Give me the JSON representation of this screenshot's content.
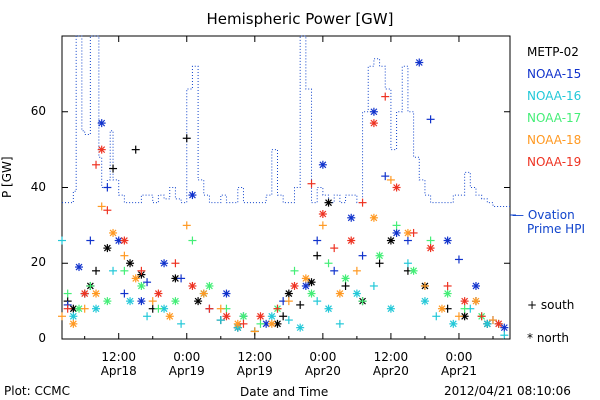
{
  "title": "Hemispheric Power [GW]",
  "ylabel": "P [GW]",
  "xlabel": "Date and Time",
  "plot_credit": "Plot: CCMC",
  "timestamp": "2012/04/21 08:10:06",
  "ovation_label_line1": "— Ovation",
  "ovation_label_line2": "Prime HPI",
  "legend": [
    {
      "name": "METP-02",
      "color": "#000000"
    },
    {
      "name": "NOAA-15",
      "color": "#1133cc"
    },
    {
      "name": "NOAA-16",
      "color": "#22c8d8"
    },
    {
      "name": "NOAA-17",
      "color": "#44ee77"
    },
    {
      "name": "NOAA-18",
      "color": "#ff9922"
    },
    {
      "name": "NOAA-19",
      "color": "#ee3322"
    }
  ],
  "marker_legend": [
    {
      "symbol": "+",
      "label": "south"
    },
    {
      "symbol": "*",
      "label": "north"
    }
  ],
  "chart_data": {
    "type": "scatter",
    "title": "Hemispheric Power [GW]",
    "xlabel": "Date and Time",
    "ylabel": "P [GW]",
    "x_unit": "hours since 2012-04-18 00:00 UTC",
    "xlim": [
      2,
      81
    ],
    "ylim": [
      0,
      80
    ],
    "yticks": [
      0,
      20,
      40,
      60
    ],
    "xticks": [
      {
        "x": 12,
        "line1": "12:00",
        "line2": "Apr18"
      },
      {
        "x": 24,
        "line1": "0:00",
        "line2": "Apr19"
      },
      {
        "x": 36,
        "line1": "12:00",
        "line2": "Apr19"
      },
      {
        "x": 48,
        "line1": "0:00",
        "line2": "Apr20"
      },
      {
        "x": 60,
        "line1": "12:00",
        "line2": "Apr20"
      },
      {
        "x": 72,
        "line1": "0:00",
        "line2": "Apr21"
      }
    ],
    "ovation_hpi": {
      "name": "Ovation Prime HPI",
      "color": "#1144cc",
      "x": [
        2,
        4,
        4.5,
        5,
        5.5,
        6,
        7,
        8,
        8.5,
        9,
        10,
        10.5,
        11,
        12,
        13,
        14,
        16,
        18,
        19,
        20,
        21,
        22,
        23,
        24,
        25,
        26,
        27,
        28,
        29,
        30,
        31,
        32,
        33,
        34,
        35,
        36,
        37,
        38,
        39,
        40,
        41,
        42,
        43,
        44,
        45,
        46,
        47,
        48,
        49,
        50,
        51,
        52,
        53,
        54,
        55,
        56,
        57,
        58,
        59,
        60,
        61,
        62,
        63,
        64,
        65,
        66,
        67,
        68,
        69,
        70,
        71,
        72,
        73,
        74,
        75,
        76,
        77,
        78,
        79,
        80,
        81
      ],
      "y": [
        36,
        39,
        80,
        80,
        55,
        54,
        80,
        80,
        48,
        40,
        42,
        55,
        42,
        38,
        36,
        36,
        38,
        36,
        38,
        37,
        40,
        37,
        36,
        66,
        72,
        42,
        38,
        36,
        36,
        38,
        36,
        36,
        40,
        36,
        36,
        36,
        36,
        38,
        50,
        38,
        36,
        36,
        40,
        80,
        66,
        36,
        40,
        38,
        36,
        38,
        36,
        38,
        38,
        36,
        60,
        72,
        74,
        72,
        66,
        50,
        60,
        72,
        60,
        48,
        42,
        38,
        36,
        36,
        36,
        36,
        38,
        38,
        44,
        40,
        38,
        37,
        36,
        35,
        35,
        35,
        35
      ]
    },
    "series": [
      {
        "name": "METP-02",
        "color": "#000000",
        "x": [
          3,
          4,
          6,
          7,
          8,
          10,
          11,
          14,
          15,
          16,
          18,
          22,
          24,
          26,
          30,
          33,
          36,
          40,
          41,
          42,
          44,
          46,
          47,
          49,
          52,
          55,
          58,
          60,
          63,
          66,
          70,
          73,
          75,
          77
        ],
        "y": [
          10,
          8,
          12,
          14,
          18,
          24,
          45,
          20,
          50,
          17,
          8,
          16,
          53,
          10,
          5,
          3,
          2,
          4,
          6,
          12,
          9,
          15,
          22,
          36,
          14,
          10,
          20,
          26,
          18,
          14,
          8,
          6,
          10,
          4
        ]
      },
      {
        "name": "NOAA-15",
        "color": "#1133cc",
        "x": [
          3,
          5,
          7,
          9,
          10,
          12,
          13,
          16,
          17,
          20,
          23,
          25,
          28,
          31,
          34,
          38,
          41,
          45,
          47,
          48,
          50,
          53,
          55,
          57,
          59,
          61,
          63,
          65,
          67,
          70,
          72,
          75,
          78,
          80
        ],
        "y": [
          9,
          19,
          26,
          57,
          40,
          26,
          12,
          10,
          15,
          20,
          16,
          38,
          8,
          12,
          6,
          4,
          10,
          14,
          26,
          46,
          18,
          32,
          22,
          60,
          43,
          28,
          26,
          73,
          58,
          26,
          21,
          14,
          5,
          3
        ]
      },
      {
        "name": "NOAA-16",
        "color": "#22c8d8",
        "x": [
          2,
          4,
          6,
          8,
          11,
          14,
          17,
          20,
          23,
          27,
          30,
          33,
          36,
          39,
          42,
          44,
          47,
          49,
          51,
          54,
          57,
          60,
          63,
          66,
          68,
          71,
          74,
          77,
          80
        ],
        "y": [
          26,
          6,
          12,
          8,
          18,
          10,
          6,
          8,
          4,
          12,
          5,
          3,
          2,
          6,
          5,
          3,
          10,
          8,
          4,
          12,
          14,
          8,
          20,
          10,
          6,
          4,
          8,
          4,
          1
        ]
      },
      {
        "name": "NOAA-17",
        "color": "#44ee77",
        "x": [
          3,
          5,
          7,
          10,
          13,
          16,
          19,
          22,
          25,
          28,
          31,
          34,
          37,
          40,
          43,
          46,
          49,
          52,
          55,
          58,
          61,
          64,
          67,
          70,
          73,
          76,
          79
        ],
        "y": [
          12,
          8,
          14,
          10,
          18,
          14,
          8,
          10,
          26,
          14,
          8,
          6,
          4,
          8,
          18,
          12,
          20,
          16,
          10,
          22,
          30,
          18,
          26,
          12,
          8,
          6,
          4
        ]
      },
      {
        "name": "NOAA-18",
        "color": "#ff9922",
        "x": [
          2,
          4,
          6,
          8,
          9,
          11,
          13,
          15,
          18,
          21,
          24,
          27,
          30,
          33,
          36,
          39,
          42,
          45,
          48,
          51,
          54,
          57,
          60,
          63,
          66,
          69,
          72,
          75,
          78
        ],
        "y": [
          6,
          4,
          8,
          12,
          35,
          28,
          22,
          16,
          10,
          6,
          30,
          12,
          8,
          4,
          2,
          4,
          10,
          16,
          30,
          12,
          18,
          32,
          42,
          28,
          14,
          8,
          6,
          10,
          5
        ]
      },
      {
        "name": "NOAA-19",
        "color": "#ee3322",
        "x": [
          3,
          6,
          8,
          9,
          10,
          13,
          16,
          19,
          22,
          25,
          28,
          31,
          34,
          37,
          40,
          43,
          46,
          48,
          50,
          53,
          55,
          57,
          59,
          61,
          64,
          67,
          70,
          73,
          76,
          79
        ],
        "y": [
          8,
          12,
          46,
          50,
          34,
          26,
          18,
          12,
          20,
          14,
          8,
          6,
          4,
          6,
          8,
          14,
          41,
          33,
          24,
          26,
          36,
          57,
          64,
          40,
          28,
          24,
          14,
          10,
          6,
          4
        ]
      }
    ]
  }
}
